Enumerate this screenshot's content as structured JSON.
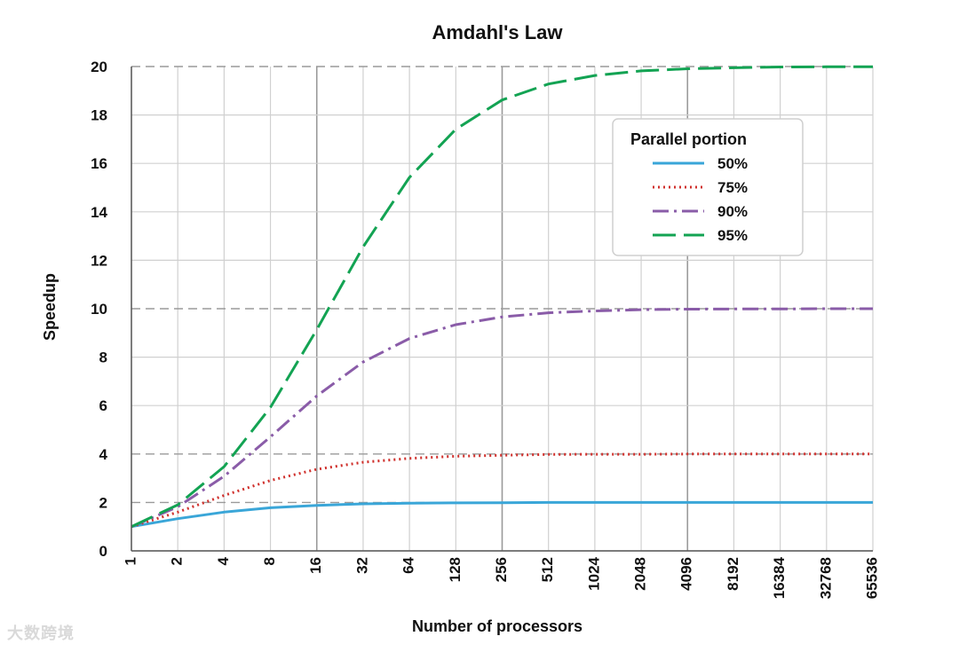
{
  "watermark": "大数跨境",
  "chart_data": {
    "type": "line",
    "title": "Amdahl's Law",
    "xlabel": "Number of processors",
    "ylabel": "Speedup",
    "x_scale": "log2",
    "x": [
      1,
      2,
      4,
      8,
      16,
      32,
      64,
      128,
      256,
      512,
      1024,
      2048,
      4096,
      8192,
      16384,
      32768,
      65536
    ],
    "x_tick_labels": [
      "1",
      "2",
      "4",
      "8",
      "16",
      "32",
      "64",
      "128",
      "256",
      "512",
      "1024",
      "2048",
      "4096",
      "8192",
      "16384",
      "32768",
      "65536"
    ],
    "ylim": [
      0,
      20
    ],
    "y_ticks": [
      0,
      2,
      4,
      6,
      8,
      10,
      12,
      14,
      16,
      18,
      20
    ],
    "grid": true,
    "legend_title": "Parallel portion",
    "legend_position": "top-right",
    "series": [
      {
        "name": "50%",
        "color": "#3aa6d8",
        "style": "solid",
        "values": [
          1.0,
          1.33,
          1.6,
          1.78,
          1.88,
          1.94,
          1.97,
          1.98,
          1.99,
          2.0,
          2.0,
          2.0,
          2.0,
          2.0,
          2.0,
          2.0,
          2.0
        ]
      },
      {
        "name": "75%",
        "color": "#d0312d",
        "style": "dotted",
        "values": [
          1.0,
          1.6,
          2.29,
          2.91,
          3.37,
          3.66,
          3.82,
          3.91,
          3.95,
          3.98,
          3.99,
          3.99,
          4.0,
          4.0,
          4.0,
          4.0,
          4.0
        ]
      },
      {
        "name": "90%",
        "color": "#8a5ca8",
        "style": "dashdot",
        "values": [
          1.0,
          1.82,
          3.08,
          4.71,
          6.4,
          7.8,
          8.77,
          9.34,
          9.66,
          9.83,
          9.91,
          9.96,
          9.98,
          9.99,
          9.99,
          10.0,
          10.0
        ]
      },
      {
        "name": "95%",
        "color": "#13a353",
        "style": "dashed",
        "values": [
          1.0,
          1.9,
          3.48,
          5.93,
          9.14,
          12.55,
          15.42,
          17.41,
          18.62,
          19.28,
          19.63,
          19.82,
          19.91,
          19.95,
          19.98,
          19.99,
          19.99
        ]
      }
    ]
  }
}
